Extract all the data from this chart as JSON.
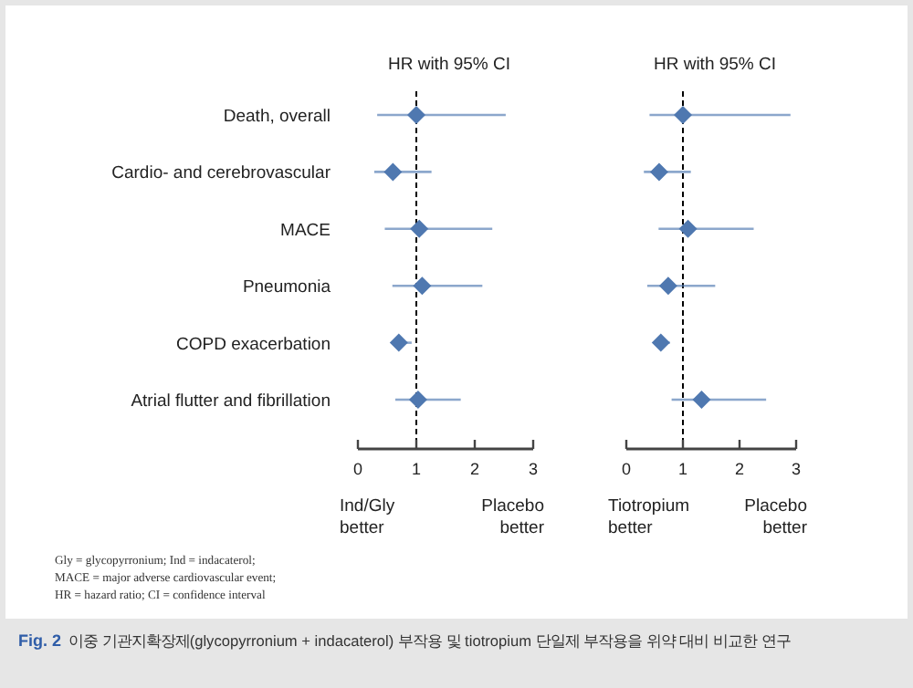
{
  "chart_data": [
    {
      "type": "scatter",
      "orientation": "horizontal",
      "title": "HR with 95% CI",
      "marker": "diamond",
      "categories": [
        "Death, overall",
        "Cardio- and cerebrovascular",
        "MACE",
        "Pneumonia",
        "COPD exacerbation",
        "Atrial flutter and fibrillation"
      ],
      "series": [
        {
          "color": "#4f78b0",
          "values": [
            1.0,
            0.6,
            1.05,
            1.1,
            0.7,
            1.03
          ],
          "errors": [
            [
              0.33,
              2.53
            ],
            [
              0.28,
              1.26
            ],
            [
              0.46,
              2.3
            ],
            [
              0.59,
              2.13
            ],
            [
              0.57,
              0.92
            ],
            [
              0.64,
              1.76
            ]
          ]
        }
      ],
      "xlim": [
        0,
        3
      ],
      "xticks": [
        0,
        1,
        2,
        3
      ],
      "ref_lines": [
        {
          "axis": "x",
          "value": 1,
          "color": "#000000",
          "line_style": "dashed"
        }
      ],
      "annotations": [
        "Ind/Gly better",
        "Placebo better"
      ],
      "grid": false
    },
    {
      "type": "scatter",
      "orientation": "horizontal",
      "title": "HR with 95% CI",
      "marker": "diamond",
      "tick_labels": "x",
      "categories": [
        null,
        null,
        null,
        null,
        null,
        null
      ],
      "series": [
        {
          "color": "#4f78b0",
          "values": [
            1.0,
            0.58,
            1.09,
            0.74,
            0.61,
            1.33
          ],
          "errors": [
            [
              0.41,
              2.9
            ],
            [
              0.31,
              1.14
            ],
            [
              0.57,
              2.25
            ],
            [
              0.37,
              1.57
            ],
            [
              0.49,
              0.77
            ],
            [
              0.8,
              2.47
            ]
          ]
        }
      ],
      "xlim": [
        0,
        3
      ],
      "xticks": [
        0,
        1,
        2,
        3
      ],
      "ref_lines": [
        {
          "axis": "x",
          "value": 1,
          "color": "#000000",
          "line_style": "dashed"
        }
      ],
      "annotations": [
        "Tiotropium better",
        "Placebo better"
      ],
      "grid": false
    },
    {
      "type": "other",
      "annotations": [
        "Gly = glycopyrronium; Ind = indacaterol;",
        "MACE = major adverse cardiovascular event;",
        "HR = hazard ratio; CI = confidence interval",
        "Fig. 2 이중 기관지확장제(glycopyrronium + indacaterol) 부작용 및 tiotropium 단일제 부작용을 위약 대비 비교한 연구"
      ]
    }
  ]
}
